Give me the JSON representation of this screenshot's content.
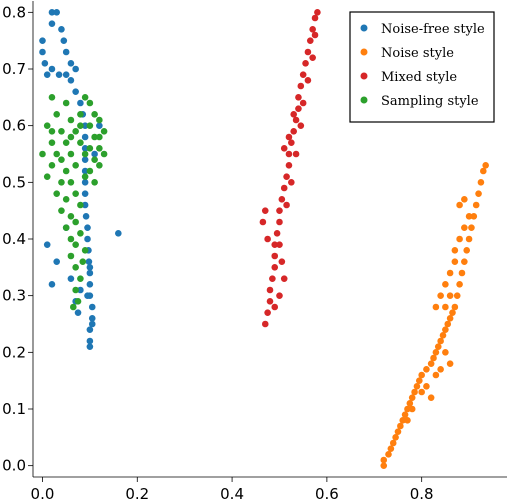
{
  "chart_data": {
    "type": "scatter",
    "title": "",
    "xlabel": "",
    "ylabel": "",
    "xlim": [
      -0.02,
      0.98
    ],
    "ylim": [
      -0.02,
      0.82
    ],
    "x_ticks": [
      0.0,
      0.2,
      0.4,
      0.6,
      0.8
    ],
    "x_tick_labels": [
      "0.0",
      "0.2",
      "0.4",
      "0.6",
      "0.8"
    ],
    "y_ticks": [
      0.0,
      0.1,
      0.2,
      0.3,
      0.4,
      0.5,
      0.6,
      0.7,
      0.8
    ],
    "y_tick_labels": [
      "0.0",
      "0.1",
      "0.2",
      "0.3",
      "0.4",
      "0.5",
      "0.6",
      "0.7",
      "0.8"
    ],
    "grid": false,
    "legend_position": "top-right",
    "series": [
      {
        "name": "Noise-free style",
        "color": "#1f77b4",
        "points": [
          [
            0.02,
            0.8
          ],
          [
            0.03,
            0.8
          ],
          [
            0.02,
            0.78
          ],
          [
            0.04,
            0.77
          ],
          [
            0.045,
            0.75
          ],
          [
            0.05,
            0.73
          ],
          [
            0.06,
            0.71
          ],
          [
            0.07,
            0.7
          ],
          [
            0.0,
            0.75
          ],
          [
            0.0,
            0.73
          ],
          [
            0.005,
            0.71
          ],
          [
            0.01,
            0.69
          ],
          [
            0.02,
            0.7
          ],
          [
            0.035,
            0.69
          ],
          [
            0.05,
            0.69
          ],
          [
            0.06,
            0.68
          ],
          [
            0.07,
            0.66
          ],
          [
            0.08,
            0.64
          ],
          [
            0.085,
            0.62
          ],
          [
            0.09,
            0.6
          ],
          [
            0.09,
            0.58
          ],
          [
            0.09,
            0.56
          ],
          [
            0.09,
            0.54
          ],
          [
            0.09,
            0.52
          ],
          [
            0.09,
            0.5
          ],
          [
            0.09,
            0.48
          ],
          [
            0.09,
            0.46
          ],
          [
            0.092,
            0.44
          ],
          [
            0.095,
            0.42
          ],
          [
            0.095,
            0.4
          ],
          [
            0.097,
            0.38
          ],
          [
            0.098,
            0.36
          ],
          [
            0.1,
            0.34
          ],
          [
            0.1,
            0.32
          ],
          [
            0.1,
            0.3
          ],
          [
            0.105,
            0.28
          ],
          [
            0.105,
            0.26
          ],
          [
            0.1,
            0.24
          ],
          [
            0.1,
            0.22
          ],
          [
            0.1,
            0.21
          ],
          [
            0.06,
            0.33
          ],
          [
            0.07,
            0.29
          ],
          [
            0.075,
            0.27
          ],
          [
            0.08,
            0.31
          ],
          [
            0.03,
            0.36
          ],
          [
            0.02,
            0.32
          ],
          [
            0.01,
            0.39
          ],
          [
            0.05,
            0.42
          ],
          [
            0.16,
            0.41
          ],
          [
            0.11,
            0.55
          ],
          [
            0.12,
            0.6
          ],
          [
            0.105,
            0.25
          ],
          [
            0.095,
            0.3
          ],
          [
            0.1,
            0.35
          ]
        ]
      },
      {
        "name": "Noise style",
        "color": "#ff7f0e",
        "points": [
          [
            0.72,
            0.0
          ],
          [
            0.72,
            0.01
          ],
          [
            0.73,
            0.02
          ],
          [
            0.735,
            0.03
          ],
          [
            0.74,
            0.04
          ],
          [
            0.745,
            0.05
          ],
          [
            0.75,
            0.06
          ],
          [
            0.755,
            0.07
          ],
          [
            0.76,
            0.08
          ],
          [
            0.765,
            0.09
          ],
          [
            0.77,
            0.1
          ],
          [
            0.775,
            0.11
          ],
          [
            0.78,
            0.12
          ],
          [
            0.785,
            0.13
          ],
          [
            0.79,
            0.14
          ],
          [
            0.795,
            0.15
          ],
          [
            0.8,
            0.16
          ],
          [
            0.81,
            0.17
          ],
          [
            0.82,
            0.18
          ],
          [
            0.825,
            0.19
          ],
          [
            0.83,
            0.2
          ],
          [
            0.835,
            0.21
          ],
          [
            0.84,
            0.22
          ],
          [
            0.845,
            0.23
          ],
          [
            0.85,
            0.24
          ],
          [
            0.855,
            0.25
          ],
          [
            0.86,
            0.26
          ],
          [
            0.865,
            0.27
          ],
          [
            0.87,
            0.28
          ],
          [
            0.875,
            0.3
          ],
          [
            0.88,
            0.32
          ],
          [
            0.885,
            0.34
          ],
          [
            0.89,
            0.36
          ],
          [
            0.895,
            0.38
          ],
          [
            0.9,
            0.4
          ],
          [
            0.905,
            0.42
          ],
          [
            0.91,
            0.44
          ],
          [
            0.915,
            0.46
          ],
          [
            0.92,
            0.48
          ],
          [
            0.925,
            0.5
          ],
          [
            0.93,
            0.52
          ],
          [
            0.935,
            0.53
          ],
          [
            0.85,
            0.2
          ],
          [
            0.86,
            0.18
          ],
          [
            0.84,
            0.17
          ],
          [
            0.83,
            0.16
          ],
          [
            0.82,
            0.12
          ],
          [
            0.81,
            0.14
          ],
          [
            0.8,
            0.13
          ],
          [
            0.78,
            0.1
          ],
          [
            0.77,
            0.08
          ],
          [
            0.83,
            0.28
          ],
          [
            0.84,
            0.3
          ],
          [
            0.85,
            0.32
          ],
          [
            0.86,
            0.34
          ],
          [
            0.87,
            0.36
          ],
          [
            0.88,
            0.4
          ],
          [
            0.89,
            0.42
          ],
          [
            0.9,
            0.44
          ],
          [
            0.87,
            0.38
          ],
          [
            0.86,
            0.3
          ],
          [
            0.85,
            0.28
          ],
          [
            0.88,
            0.46
          ],
          [
            0.89,
            0.47
          ]
        ]
      },
      {
        "name": "Mixed style",
        "color": "#d62728",
        "points": [
          [
            0.47,
            0.25
          ],
          [
            0.475,
            0.27
          ],
          [
            0.48,
            0.29
          ],
          [
            0.48,
            0.31
          ],
          [
            0.485,
            0.33
          ],
          [
            0.49,
            0.35
          ],
          [
            0.49,
            0.37
          ],
          [
            0.49,
            0.39
          ],
          [
            0.495,
            0.41
          ],
          [
            0.5,
            0.43
          ],
          [
            0.5,
            0.45
          ],
          [
            0.505,
            0.47
          ],
          [
            0.51,
            0.49
          ],
          [
            0.515,
            0.51
          ],
          [
            0.52,
            0.53
          ],
          [
            0.52,
            0.55
          ],
          [
            0.525,
            0.57
          ],
          [
            0.53,
            0.59
          ],
          [
            0.535,
            0.61
          ],
          [
            0.54,
            0.63
          ],
          [
            0.54,
            0.65
          ],
          [
            0.545,
            0.67
          ],
          [
            0.55,
            0.69
          ],
          [
            0.555,
            0.71
          ],
          [
            0.56,
            0.73
          ],
          [
            0.565,
            0.75
          ],
          [
            0.57,
            0.77
          ],
          [
            0.575,
            0.79
          ],
          [
            0.58,
            0.8
          ],
          [
            0.465,
            0.43
          ],
          [
            0.47,
            0.45
          ],
          [
            0.475,
            0.4
          ],
          [
            0.49,
            0.28
          ],
          [
            0.5,
            0.3
          ],
          [
            0.51,
            0.33
          ],
          [
            0.505,
            0.36
          ],
          [
            0.5,
            0.39
          ],
          [
            0.515,
            0.46
          ],
          [
            0.525,
            0.5
          ],
          [
            0.535,
            0.55
          ],
          [
            0.545,
            0.6
          ],
          [
            0.55,
            0.64
          ],
          [
            0.56,
            0.68
          ],
          [
            0.57,
            0.72
          ],
          [
            0.575,
            0.76
          ],
          [
            0.51,
            0.56
          ],
          [
            0.52,
            0.58
          ],
          [
            0.53,
            0.62
          ]
        ]
      },
      {
        "name": "Sampling style",
        "color": "#2ca02c",
        "points": [
          [
            0.02,
            0.65
          ],
          [
            0.05,
            0.64
          ],
          [
            0.09,
            0.65
          ],
          [
            0.1,
            0.64
          ],
          [
            0.03,
            0.62
          ],
          [
            0.06,
            0.61
          ],
          [
            0.08,
            0.62
          ],
          [
            0.11,
            0.62
          ],
          [
            0.12,
            0.61
          ],
          [
            0.01,
            0.6
          ],
          [
            0.04,
            0.59
          ],
          [
            0.07,
            0.59
          ],
          [
            0.1,
            0.6
          ],
          [
            0.13,
            0.59
          ],
          [
            0.02,
            0.57
          ],
          [
            0.05,
            0.57
          ],
          [
            0.08,
            0.57
          ],
          [
            0.11,
            0.58
          ],
          [
            0.12,
            0.56
          ],
          [
            0.0,
            0.55
          ],
          [
            0.03,
            0.55
          ],
          [
            0.06,
            0.55
          ],
          [
            0.09,
            0.55
          ],
          [
            0.11,
            0.54
          ],
          [
            0.13,
            0.55
          ],
          [
            0.02,
            0.53
          ],
          [
            0.05,
            0.52
          ],
          [
            0.07,
            0.53
          ],
          [
            0.1,
            0.52
          ],
          [
            0.12,
            0.53
          ],
          [
            0.01,
            0.51
          ],
          [
            0.04,
            0.5
          ],
          [
            0.06,
            0.5
          ],
          [
            0.09,
            0.51
          ],
          [
            0.11,
            0.5
          ],
          [
            0.03,
            0.48
          ],
          [
            0.05,
            0.47
          ],
          [
            0.07,
            0.48
          ],
          [
            0.08,
            0.46
          ],
          [
            0.04,
            0.45
          ],
          [
            0.06,
            0.44
          ],
          [
            0.07,
            0.43
          ],
          [
            0.05,
            0.42
          ],
          [
            0.06,
            0.4
          ],
          [
            0.07,
            0.39
          ],
          [
            0.08,
            0.41
          ],
          [
            0.06,
            0.37
          ],
          [
            0.07,
            0.35
          ],
          [
            0.08,
            0.33
          ],
          [
            0.07,
            0.31
          ],
          [
            0.075,
            0.29
          ],
          [
            0.065,
            0.28
          ],
          [
            0.085,
            0.36
          ],
          [
            0.09,
            0.38
          ],
          [
            0.1,
            0.56
          ],
          [
            0.12,
            0.58
          ],
          [
            0.08,
            0.6
          ],
          [
            0.06,
            0.58
          ],
          [
            0.04,
            0.54
          ],
          [
            0.02,
            0.59
          ]
        ]
      }
    ]
  }
}
